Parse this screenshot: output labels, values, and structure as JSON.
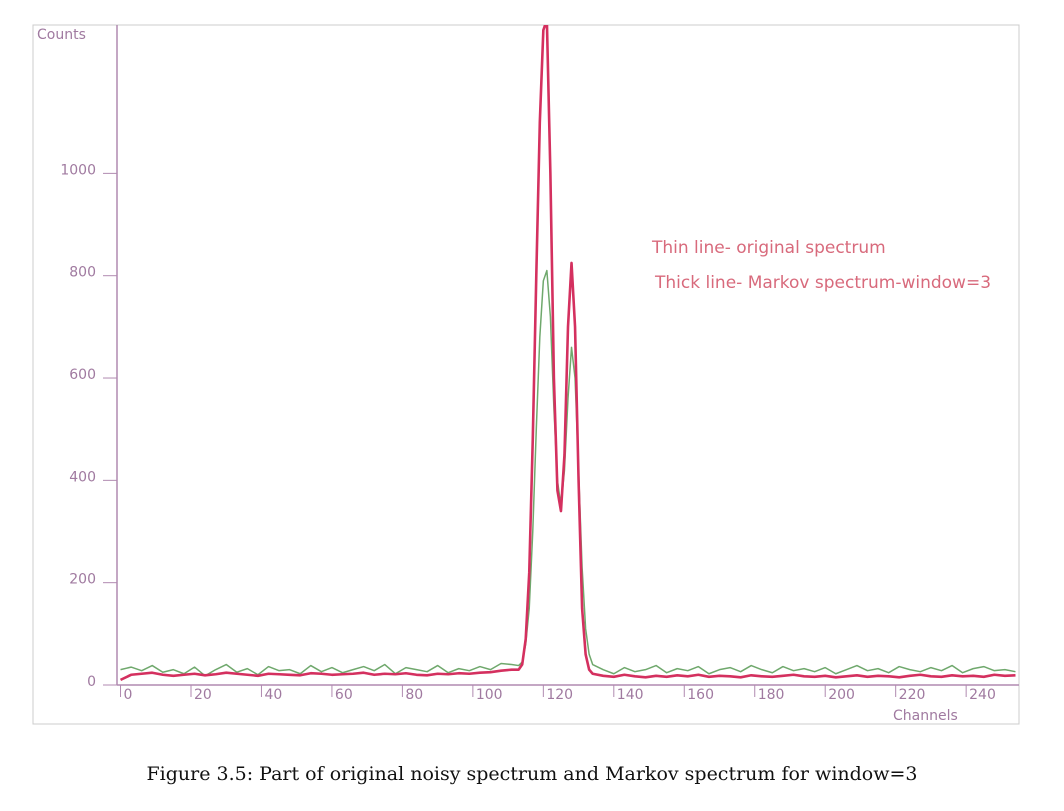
{
  "chart_data": {
    "type": "line",
    "caption": "Figure 3.5: Part of original noisy spectrum and Markov spectrum for window=3",
    "ylabel": "Counts",
    "xlabel": "Channels",
    "annotations": [
      "Thin line- original spectrum",
      "Thick line- Markov spectrum-window=3"
    ],
    "xlim": [
      -1,
      255
    ],
    "ylim": [
      0,
      1290
    ],
    "xticks": [
      0,
      20,
      40,
      60,
      80,
      100,
      120,
      140,
      160,
      180,
      200,
      220,
      240
    ],
    "yticks": [
      0,
      200,
      400,
      600,
      800,
      1000
    ],
    "x": [
      0,
      3,
      6,
      9,
      12,
      15,
      18,
      21,
      24,
      27,
      30,
      33,
      36,
      39,
      42,
      45,
      48,
      51,
      54,
      57,
      60,
      63,
      66,
      69,
      72,
      75,
      78,
      81,
      84,
      87,
      90,
      93,
      96,
      99,
      102,
      105,
      108,
      111,
      113,
      114,
      115,
      116,
      117,
      118,
      119,
      120,
      121,
      122,
      123,
      124,
      125,
      126,
      127,
      128,
      129,
      130,
      131,
      132,
      133,
      134,
      137,
      140,
      143,
      146,
      149,
      152,
      155,
      158,
      161,
      164,
      167,
      170,
      173,
      176,
      179,
      182,
      185,
      188,
      191,
      194,
      197,
      200,
      203,
      206,
      209,
      212,
      215,
      218,
      221,
      224,
      227,
      230,
      233,
      236,
      239,
      242,
      245,
      248,
      251,
      254
    ],
    "series": [
      {
        "name": "original spectrum",
        "color": "#6fa86c",
        "width": 1.5,
        "values": [
          30,
          35,
          28,
          38,
          25,
          30,
          22,
          35,
          18,
          30,
          40,
          25,
          32,
          20,
          36,
          28,
          30,
          22,
          38,
          26,
          34,
          24,
          30,
          36,
          28,
          40,
          22,
          34,
          30,
          26,
          38,
          24,
          32,
          28,
          36,
          30,
          42,
          40,
          38,
          45,
          80,
          150,
          300,
          500,
          680,
          790,
          810,
          720,
          540,
          400,
          350,
          420,
          560,
          660,
          600,
          420,
          230,
          110,
          60,
          40,
          30,
          22,
          34,
          26,
          30,
          38,
          24,
          32,
          28,
          36,
          22,
          30,
          34,
          26,
          38,
          30,
          24,
          36,
          28,
          32,
          26,
          34,
          22,
          30,
          38,
          28,
          32,
          24,
          36,
          30,
          26,
          34,
          28,
          38,
          24,
          32,
          36,
          28,
          30,
          26
        ]
      },
      {
        "name": "Markov spectrum",
        "color": "#d4305f",
        "width": 2.6,
        "values": [
          10,
          20,
          22,
          24,
          20,
          18,
          20,
          22,
          19,
          21,
          24,
          22,
          20,
          18,
          22,
          21,
          20,
          19,
          23,
          22,
          20,
          21,
          22,
          24,
          20,
          22,
          21,
          23,
          20,
          19,
          22,
          21,
          23,
          22,
          24,
          25,
          28,
          30,
          30,
          40,
          90,
          220,
          480,
          800,
          1100,
          1280,
          1300,
          1000,
          600,
          380,
          340,
          450,
          700,
          825,
          700,
          400,
          150,
          60,
          30,
          22,
          18,
          16,
          20,
          17,
          15,
          18,
          16,
          19,
          17,
          20,
          16,
          18,
          17,
          15,
          19,
          17,
          16,
          18,
          20,
          17,
          16,
          18,
          15,
          17,
          19,
          16,
          18,
          17,
          15,
          18,
          20,
          17,
          16,
          19,
          17,
          18,
          16,
          20,
          18,
          19
        ]
      }
    ]
  }
}
